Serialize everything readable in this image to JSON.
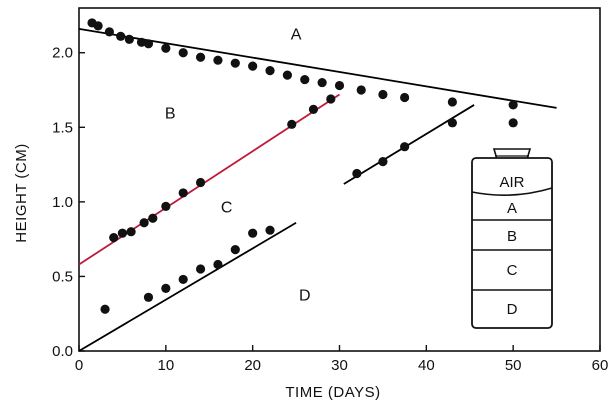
{
  "chart_data": {
    "type": "scatter",
    "title": "",
    "xlabel": "TIME (DAYS)",
    "ylabel": "HEIGHT (CM)",
    "xlim": [
      0,
      60
    ],
    "ylim": [
      0,
      2.3
    ],
    "x_ticks": [
      0,
      10,
      20,
      30,
      40,
      50,
      60
    ],
    "x_tick_labels": [
      "0",
      "10",
      "20",
      "30",
      "40",
      "50",
      "60"
    ],
    "y_ticks": [
      0.0,
      0.5,
      1.0,
      1.5,
      2.0
    ],
    "y_tick_labels": [
      "0.0",
      "0.5",
      "1.0",
      "1.5",
      "2.0"
    ],
    "grid": false,
    "region_labels": [
      {
        "text": "A",
        "x": 25,
        "y": 2.09
      },
      {
        "text": "B",
        "x": 10.5,
        "y": 1.56
      },
      {
        "text": "C",
        "x": 17,
        "y": 0.93
      },
      {
        "text": "D",
        "x": 26,
        "y": 0.34
      }
    ],
    "series": [
      {
        "points": [
          [
            1.5,
            2.2
          ],
          [
            2.2,
            2.18
          ],
          [
            3.5,
            2.14
          ],
          [
            4.8,
            2.11
          ],
          [
            5.8,
            2.09
          ],
          [
            7.2,
            2.07
          ],
          [
            8.0,
            2.06
          ],
          [
            10,
            2.03
          ],
          [
            12,
            2.0
          ],
          [
            14,
            1.97
          ],
          [
            16,
            1.95
          ],
          [
            18,
            1.93
          ],
          [
            20,
            1.91
          ],
          [
            22,
            1.88
          ],
          [
            24,
            1.85
          ],
          [
            26,
            1.82
          ],
          [
            28,
            1.8
          ],
          [
            30,
            1.78
          ],
          [
            32.5,
            1.75
          ],
          [
            35,
            1.72
          ],
          [
            37.5,
            1.7
          ],
          [
            43,
            1.67
          ],
          [
            50,
            1.65
          ]
        ],
        "fit_line": [
          [
            0,
            2.16
          ],
          [
            55,
            1.63
          ]
        ],
        "fit_color": "#000000"
      },
      {
        "points": [
          [
            4,
            0.76
          ],
          [
            5,
            0.79
          ],
          [
            6,
            0.8
          ],
          [
            7.5,
            0.86
          ],
          [
            8.5,
            0.89
          ],
          [
            10,
            0.97
          ],
          [
            12,
            1.06
          ],
          [
            14,
            1.13
          ],
          [
            24.5,
            1.52
          ],
          [
            27,
            1.62
          ],
          [
            29,
            1.69
          ]
        ],
        "fit_line": [
          [
            0,
            0.58
          ],
          [
            30,
            1.72
          ]
        ],
        "fit_color": "#c0183a"
      },
      {
        "points": [
          [
            3,
            0.28
          ],
          [
            8,
            0.36
          ],
          [
            10,
            0.42
          ],
          [
            12,
            0.48
          ],
          [
            14,
            0.55
          ],
          [
            16,
            0.58
          ],
          [
            18,
            0.68
          ],
          [
            20,
            0.79
          ],
          [
            22,
            0.81
          ]
        ],
        "fit_line": [
          [
            0,
            0.0
          ],
          [
            25,
            0.86
          ]
        ],
        "fit_color": "#000000"
      },
      {
        "points": [
          [
            32,
            1.19
          ],
          [
            35,
            1.27
          ],
          [
            37.5,
            1.37
          ],
          [
            43,
            1.53
          ],
          [
            50,
            1.53
          ]
        ],
        "fit_line": [
          [
            30.5,
            1.12
          ],
          [
            45.5,
            1.65
          ]
        ],
        "fit_color": "#000000"
      }
    ],
    "inset": {
      "layers": [
        "AIR",
        "A",
        "B",
        "C",
        "D"
      ]
    }
  }
}
